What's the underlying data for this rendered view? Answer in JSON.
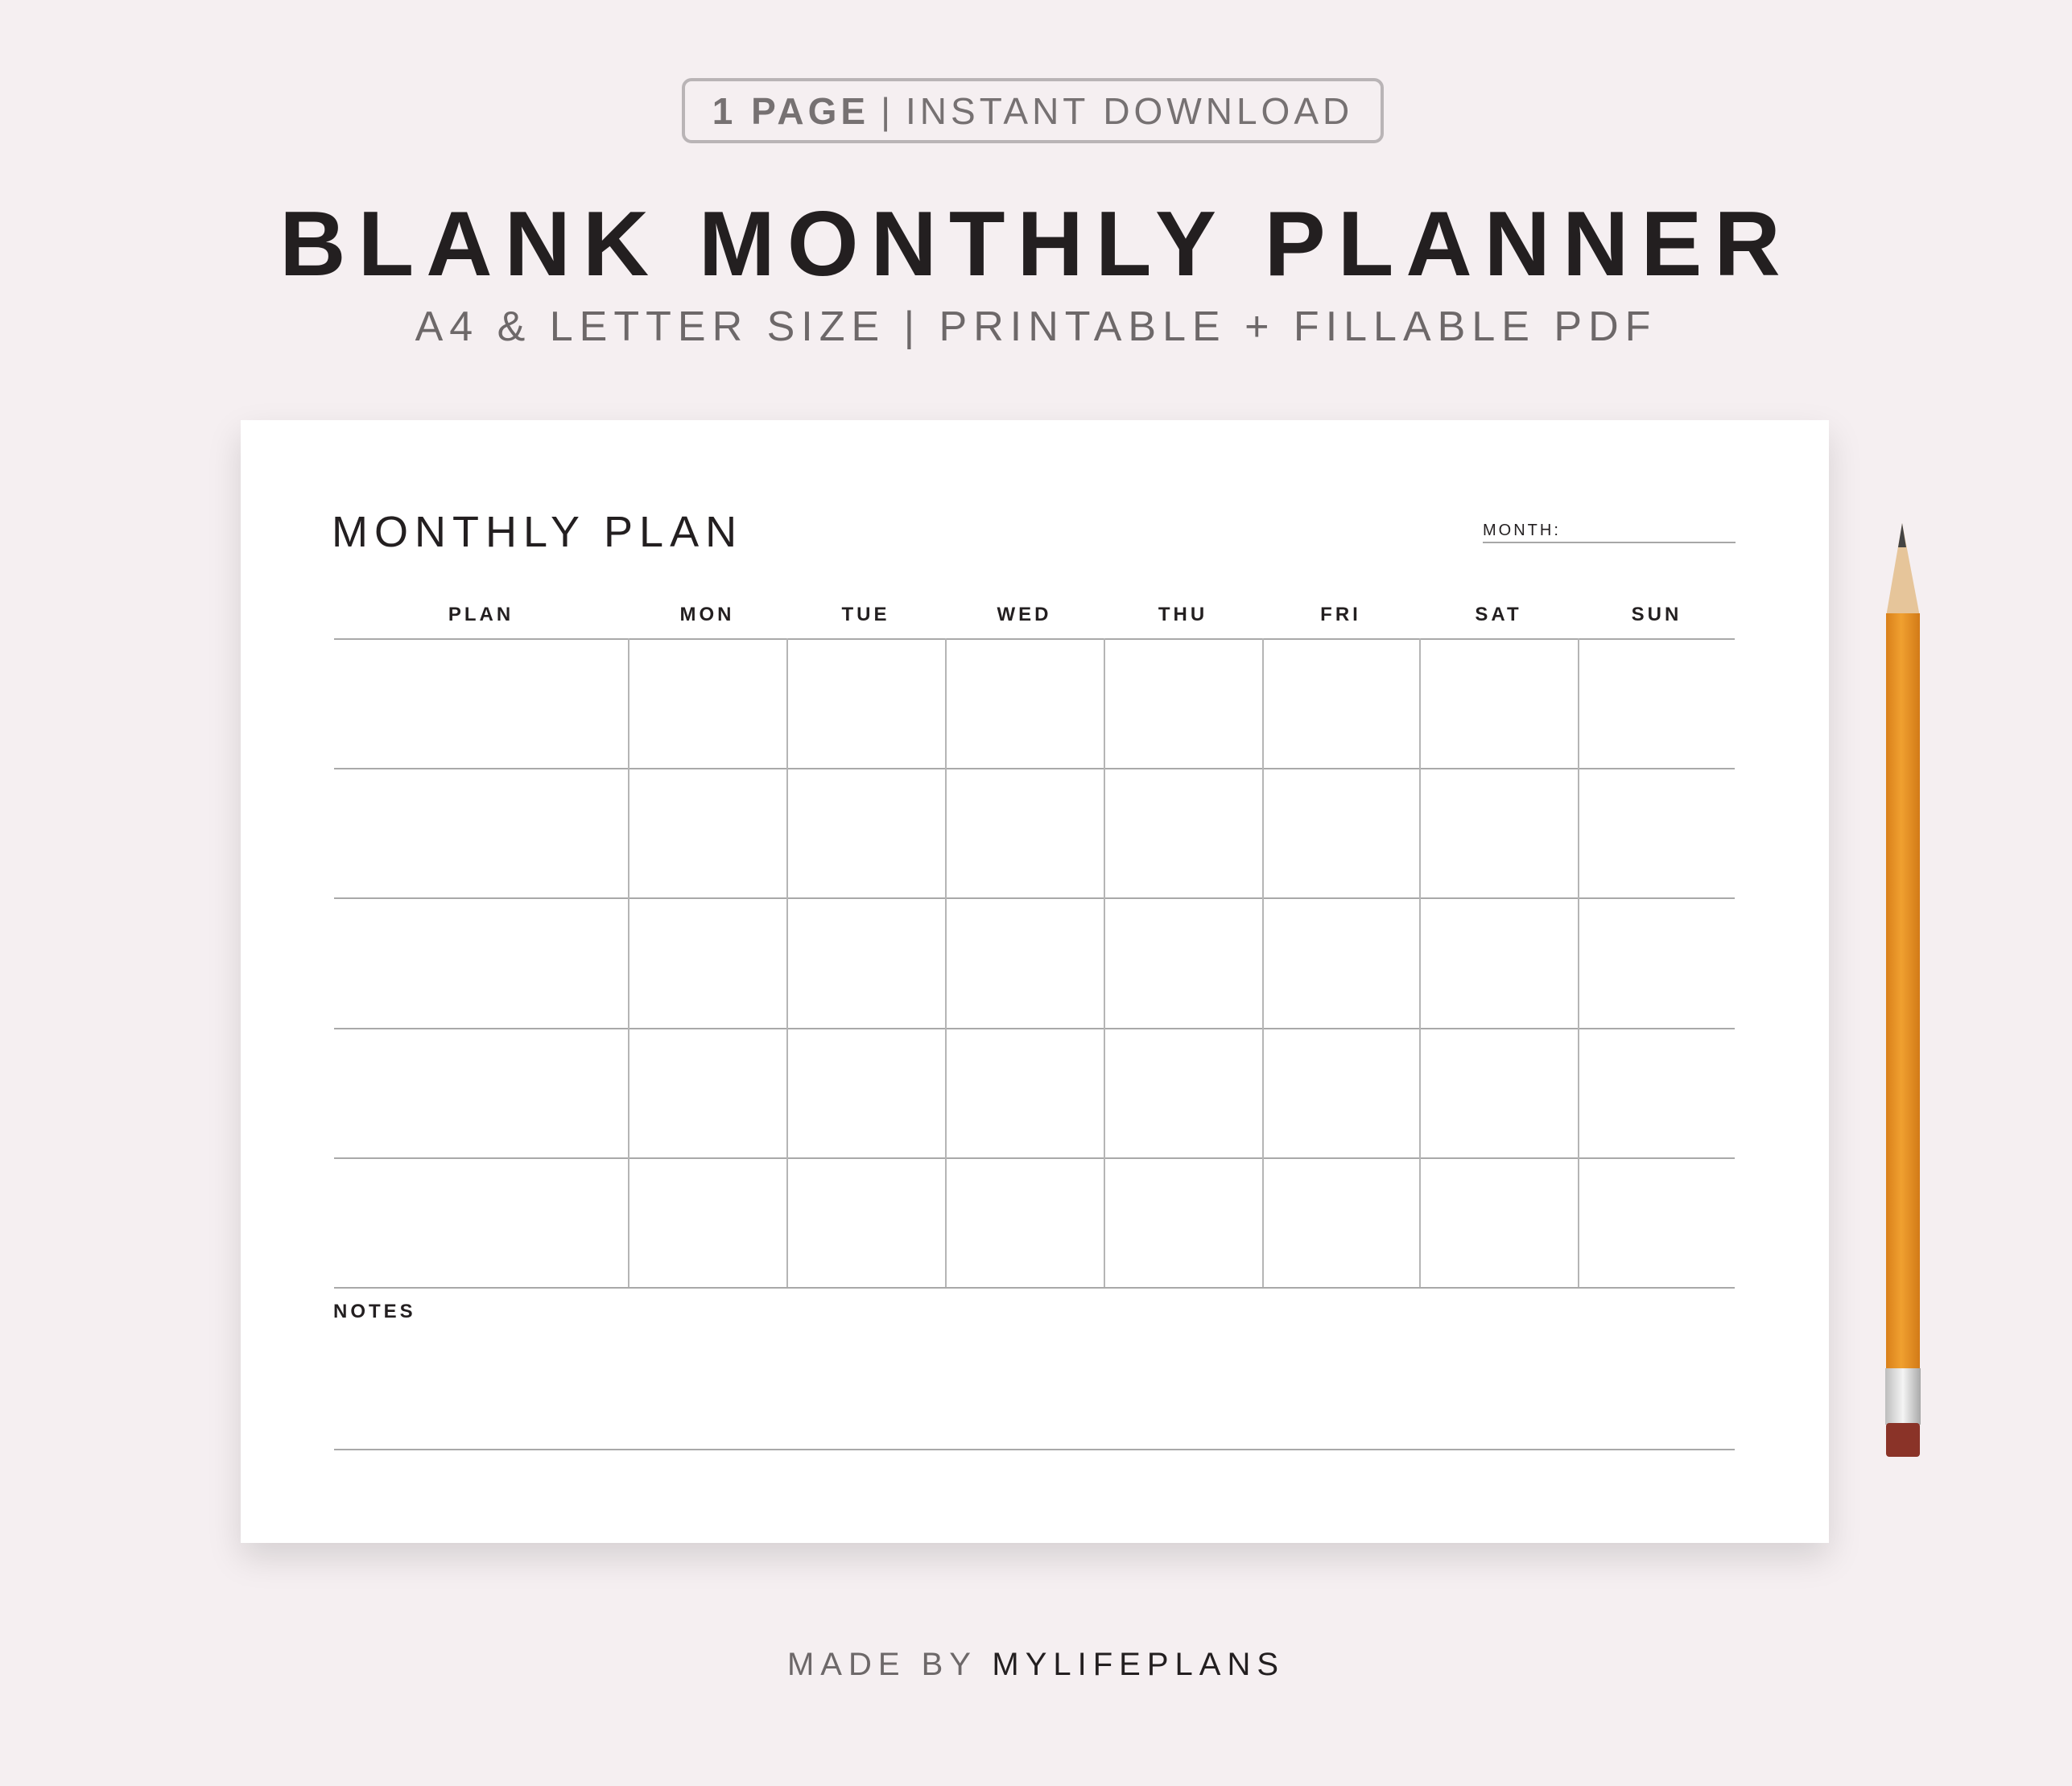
{
  "badge": {
    "pages": "1 PAGE",
    "separator": "|",
    "download": "INSTANT DOWNLOAD"
  },
  "title": "BLANK MONTHLY PLANNER",
  "subtitle": "A4 & LETTER SIZE | PRINTABLE + FILLABLE PDF",
  "planner": {
    "heading": "MONTHLY PLAN",
    "month_label": "MONTH:",
    "columns": [
      "PLAN",
      "MON",
      "TUE",
      "WED",
      "THU",
      "FRI",
      "SAT",
      "SUN"
    ],
    "rows": 5,
    "notes_label": "NOTES"
  },
  "footer": {
    "prefix": "MADE BY",
    "brand": "MYLIFEPLANS"
  },
  "colors": {
    "background": "#f5eff1",
    "text": "#231f20",
    "muted": "#6d6869",
    "pencil": "#e8951f"
  }
}
